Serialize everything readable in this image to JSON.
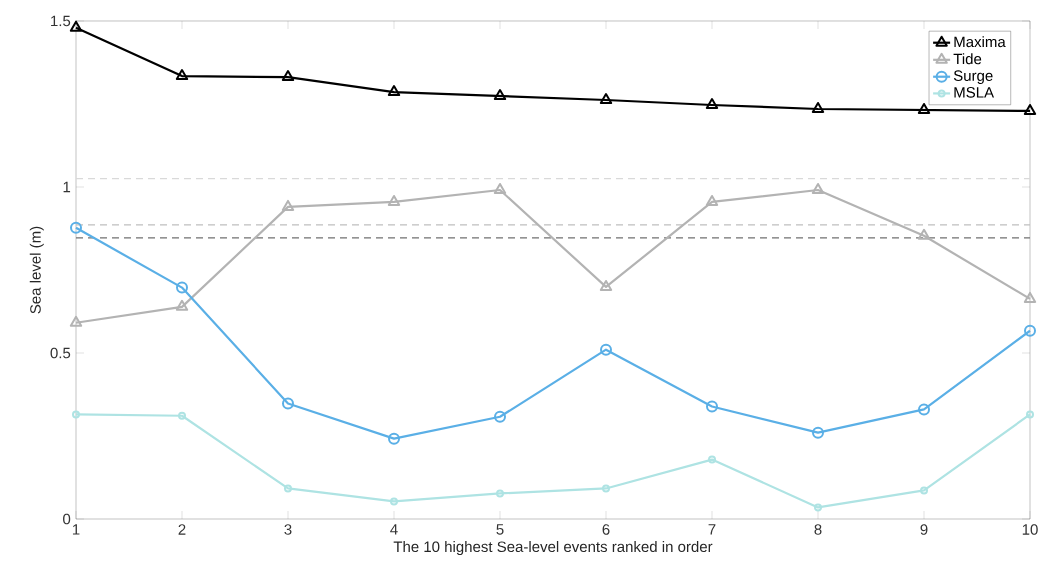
{
  "chart_data": {
    "type": "line",
    "xlabel": "The 10 highest Sea-level events ranked in order",
    "ylabel": "Sea level (m)",
    "x": [
      1,
      2,
      3,
      4,
      5,
      6,
      7,
      8,
      9,
      10
    ],
    "series": [
      {
        "name": "Maxima",
        "color": "#000000",
        "marker": "triangle",
        "values": [
          1.48,
          1.334,
          1.331,
          1.286,
          1.274,
          1.262,
          1.247,
          1.235,
          1.232,
          1.229
        ]
      },
      {
        "name": "Tide",
        "color": "#b3b3b3",
        "marker": "triangle",
        "values": [
          0.591,
          0.639,
          0.94,
          0.955,
          0.991,
          0.699,
          0.955,
          0.991,
          0.853,
          0.663
        ]
      },
      {
        "name": "Surge",
        "color": "#5aafe6",
        "marker": "circle",
        "values": [
          0.877,
          0.697,
          0.348,
          0.242,
          0.308,
          0.51,
          0.339,
          0.26,
          0.33,
          0.567
        ]
      },
      {
        "name": "MSLA",
        "color": "#aee3e3",
        "marker": "circle",
        "values": [
          0.315,
          0.311,
          0.092,
          0.053,
          0.077,
          0.092,
          0.179,
          0.035,
          0.086,
          0.315
        ]
      }
    ],
    "ref_lines": [
      {
        "axis": "y",
        "value": 1.025,
        "color": "#d9d9d9",
        "line_style": "dashed"
      },
      {
        "axis": "y",
        "value": 0.886,
        "color": "#bfbfbf",
        "line_style": "dashed"
      },
      {
        "axis": "y",
        "value": 0.847,
        "color": "#707070",
        "line_style": "dashed"
      }
    ],
    "xlim": [
      1,
      10
    ],
    "ylim": [
      0,
      1.5
    ],
    "xticks": [
      1,
      2,
      3,
      4,
      5,
      6,
      7,
      8,
      9,
      10
    ],
    "yticks": [
      0,
      0.5,
      1,
      1.5
    ],
    "legend": "top right",
    "grid": false,
    "line_style": "solid"
  }
}
